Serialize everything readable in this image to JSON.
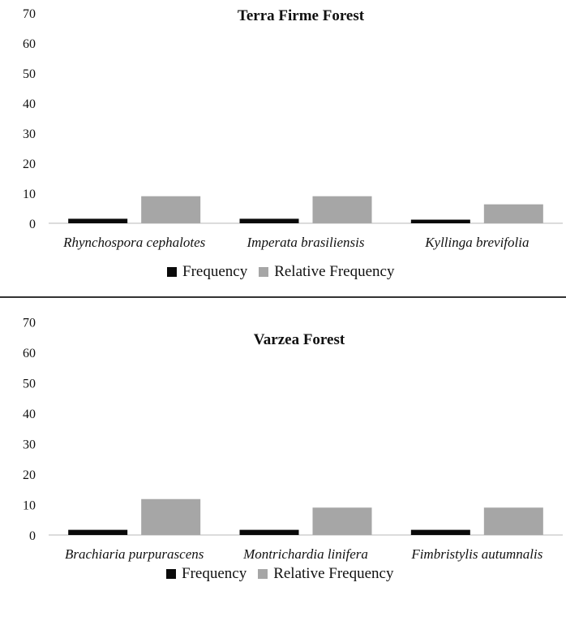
{
  "colors": {
    "frequency": "#0a0a0a",
    "relative_frequency": "#a6a6a6",
    "axis": "#d0d0d0",
    "text": "#111111"
  },
  "legend": {
    "frequency_label": "Frequency",
    "relative_frequency_label": "Relative Frequency"
  },
  "chart_data": [
    {
      "type": "bar",
      "title": "Terra Firme Forest",
      "categories": [
        "Rhynchospora cephalotes",
        "Imperata brasiliensis",
        "Kyllinga brevifolia"
      ],
      "series": [
        {
          "name": "Frequency",
          "values": [
            1.5,
            1.5,
            1.2
          ]
        },
        {
          "name": "Relative Frequency",
          "values": [
            9,
            9,
            6.3
          ]
        }
      ],
      "ylim": [
        0,
        70
      ],
      "yticks": [
        0,
        10,
        20,
        30,
        40,
        50,
        60,
        70
      ],
      "xlabel": "",
      "ylabel": "",
      "grid": false,
      "legend_position": "bottom"
    },
    {
      "type": "bar",
      "title": "Varzea Forest",
      "categories": [
        "Brachiaria purpurascens",
        "Montrichardia linifera",
        "Fimbristylis autumnalis"
      ],
      "series": [
        {
          "name": "Frequency",
          "values": [
            1.7,
            1.7,
            1.7
          ]
        },
        {
          "name": "Relative Frequency",
          "values": [
            11.8,
            9,
            9
          ]
        }
      ],
      "ylim": [
        0,
        70
      ],
      "yticks": [
        0,
        10,
        20,
        30,
        40,
        50,
        60,
        70
      ],
      "xlabel": "",
      "ylabel": "",
      "grid": false,
      "legend_position": "bottom"
    }
  ]
}
